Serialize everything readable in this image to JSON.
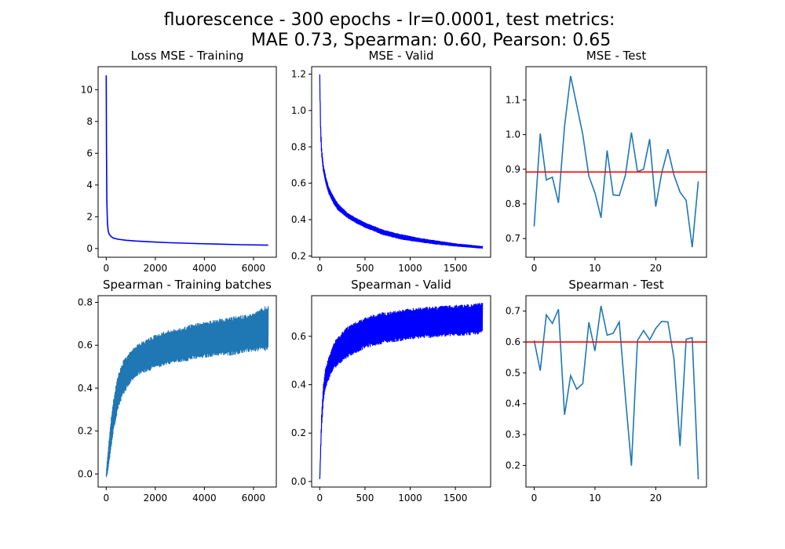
{
  "figure": {
    "title_line1": "fluorescence - 300 epochs - lr=0.0001,  test metrics:",
    "title_line2": "MAE 0.73, Spearman: 0.60, Pearson: 0.65"
  },
  "colors": {
    "blue": "#0000ff",
    "steel": "#1f77b4",
    "red": "#ff0000"
  },
  "chart_data": [
    {
      "id": "p1",
      "type": "line",
      "title": "Loss MSE - Training",
      "xlim": [
        -330,
        6930
      ],
      "ylim": [
        -0.55,
        11.45
      ],
      "xticks": [
        0,
        2000,
        4000,
        6000
      ],
      "yticks": [
        0,
        2,
        4,
        6,
        8,
        10
      ],
      "tick_decimals": 0,
      "series": [
        {
          "color": "#0000ff",
          "x": [
            0,
            10,
            25,
            50,
            80,
            120,
            200,
            300,
            500,
            800,
            1200,
            1800,
            2500,
            3500,
            4500,
            5500,
            6600
          ],
          "y": [
            10.9,
            6.5,
            3.0,
            1.6,
            1.1,
            0.9,
            0.75,
            0.65,
            0.58,
            0.52,
            0.47,
            0.42,
            0.37,
            0.32,
            0.28,
            0.24,
            0.21
          ]
        }
      ]
    },
    {
      "id": "p2",
      "type": "line",
      "title": "MSE - Valid",
      "xlim": [
        -90,
        1890
      ],
      "ylim": [
        0.193,
        1.241
      ],
      "xticks": [
        0,
        500,
        1000,
        1500
      ],
      "yticks": [
        0.2,
        0.4,
        0.6,
        0.8,
        1.0,
        1.2
      ],
      "tick_decimals": 1,
      "series": [
        {
          "color": "#0000ff",
          "band": true,
          "x": [
            0,
            5,
            10,
            20,
            40,
            70,
            100,
            150,
            200,
            300,
            400,
            500,
            700,
            900,
            1100,
            1300,
            1500,
            1700,
            1800
          ],
          "y": [
            1.2,
            1.05,
            0.92,
            0.8,
            0.7,
            0.63,
            0.58,
            0.53,
            0.49,
            0.44,
            0.41,
            0.385,
            0.345,
            0.32,
            0.3,
            0.285,
            0.27,
            0.26,
            0.255
          ],
          "low": [
            1.18,
            0.95,
            0.85,
            0.75,
            0.66,
            0.59,
            0.54,
            0.49,
            0.45,
            0.41,
            0.38,
            0.355,
            0.315,
            0.29,
            0.275,
            0.262,
            0.252,
            0.244,
            0.24
          ]
        }
      ]
    },
    {
      "id": "p3",
      "type": "line",
      "title": "MSE - Test",
      "xlim": [
        -1.35,
        28.35
      ],
      "ylim": [
        0.646,
        1.196
      ],
      "xticks": [
        0,
        10,
        20
      ],
      "yticks": [
        0.7,
        0.8,
        0.9,
        1.0,
        1.1
      ],
      "tick_decimals": 1,
      "series": [
        {
          "color": "#1f77b4",
          "x": [
            0,
            1,
            2,
            3,
            4,
            5,
            6,
            7,
            8,
            9,
            10,
            11,
            12,
            13,
            14,
            15,
            16,
            17,
            18,
            19,
            20,
            21,
            22,
            23,
            24,
            25,
            26,
            27
          ],
          "y": [
            0.735,
            1.003,
            0.869,
            0.877,
            0.803,
            1.024,
            1.169,
            1.085,
            1.0,
            0.88,
            0.832,
            0.76,
            0.954,
            0.826,
            0.824,
            0.882,
            1.006,
            0.893,
            0.9,
            0.987,
            0.792,
            0.891,
            0.958,
            0.883,
            0.834,
            0.81,
            0.675,
            0.865
          ]
        }
      ],
      "hline": {
        "y": 0.892,
        "color": "#ff0000"
      }
    },
    {
      "id": "p4",
      "type": "line",
      "title": "Spearman - Training batches",
      "xlim": [
        -330,
        6930
      ],
      "ylim": [
        -0.061,
        0.831
      ],
      "xticks": [
        0,
        2000,
        4000,
        6000
      ],
      "yticks": [
        0.0,
        0.2,
        0.4,
        0.6,
        0.8
      ],
      "tick_decimals": 1,
      "series": [
        {
          "color": "#1f77b4",
          "band": true,
          "x": [
            0,
            50,
            100,
            150,
            200,
            300,
            400,
            500,
            700,
            900,
            1200,
            1500,
            2000,
            2500,
            3000,
            3500,
            4000,
            4500,
            5000,
            5500,
            6000,
            6600
          ],
          "y": [
            0.0,
            0.08,
            0.14,
            0.2,
            0.26,
            0.35,
            0.42,
            0.47,
            0.53,
            0.56,
            0.6,
            0.62,
            0.65,
            0.67,
            0.68,
            0.7,
            0.71,
            0.72,
            0.73,
            0.74,
            0.75,
            0.79
          ],
          "low": [
            -0.02,
            0.0,
            0.04,
            0.08,
            0.12,
            0.2,
            0.26,
            0.31,
            0.37,
            0.41,
            0.45,
            0.47,
            0.49,
            0.51,
            0.52,
            0.53,
            0.54,
            0.55,
            0.55,
            0.56,
            0.57,
            0.57
          ]
        }
      ]
    },
    {
      "id": "p5",
      "type": "line",
      "title": "Spearman - Valid",
      "xlim": [
        -90,
        1890
      ],
      "ylim": [
        -0.023,
        0.768
      ],
      "xticks": [
        0,
        500,
        1000,
        1500
      ],
      "yticks": [
        0.0,
        0.2,
        0.4,
        0.6
      ],
      "tick_decimals": 1,
      "series": [
        {
          "color": "#0000ff",
          "band": true,
          "x": [
            0,
            10,
            20,
            40,
            60,
            100,
            150,
            200,
            300,
            400,
            500,
            700,
            900,
            1100,
            1300,
            1500,
            1700,
            1800
          ],
          "y": [
            0.01,
            0.15,
            0.28,
            0.4,
            0.46,
            0.52,
            0.57,
            0.6,
            0.64,
            0.66,
            0.68,
            0.7,
            0.71,
            0.72,
            0.725,
            0.73,
            0.735,
            0.74
          ],
          "low": [
            0.01,
            0.12,
            0.22,
            0.33,
            0.38,
            0.42,
            0.46,
            0.48,
            0.51,
            0.53,
            0.55,
            0.57,
            0.58,
            0.59,
            0.595,
            0.6,
            0.605,
            0.61
          ]
        }
      ]
    },
    {
      "id": "p6",
      "type": "line",
      "title": "Spearman - Test",
      "xlim": [
        -1.35,
        28.35
      ],
      "ylim": [
        0.13,
        0.75
      ],
      "xticks": [
        0,
        10,
        20
      ],
      "yticks": [
        0.2,
        0.3,
        0.4,
        0.5,
        0.6,
        0.7
      ],
      "tick_decimals": 1,
      "series": [
        {
          "color": "#1f77b4",
          "x": [
            0,
            1,
            2,
            3,
            4,
            5,
            6,
            7,
            8,
            9,
            10,
            11,
            12,
            13,
            14,
            15,
            16,
            17,
            18,
            19,
            20,
            21,
            22,
            23,
            24,
            25,
            26,
            27
          ],
          "y": [
            0.605,
            0.507,
            0.688,
            0.66,
            0.706,
            0.364,
            0.491,
            0.447,
            0.465,
            0.664,
            0.571,
            0.717,
            0.622,
            0.628,
            0.665,
            0.424,
            0.199,
            0.605,
            0.637,
            0.607,
            0.644,
            0.667,
            0.665,
            0.546,
            0.263,
            0.609,
            0.614,
            0.155
          ]
        }
      ],
      "hline": {
        "y": 0.6,
        "color": "#ff0000"
      }
    }
  ]
}
